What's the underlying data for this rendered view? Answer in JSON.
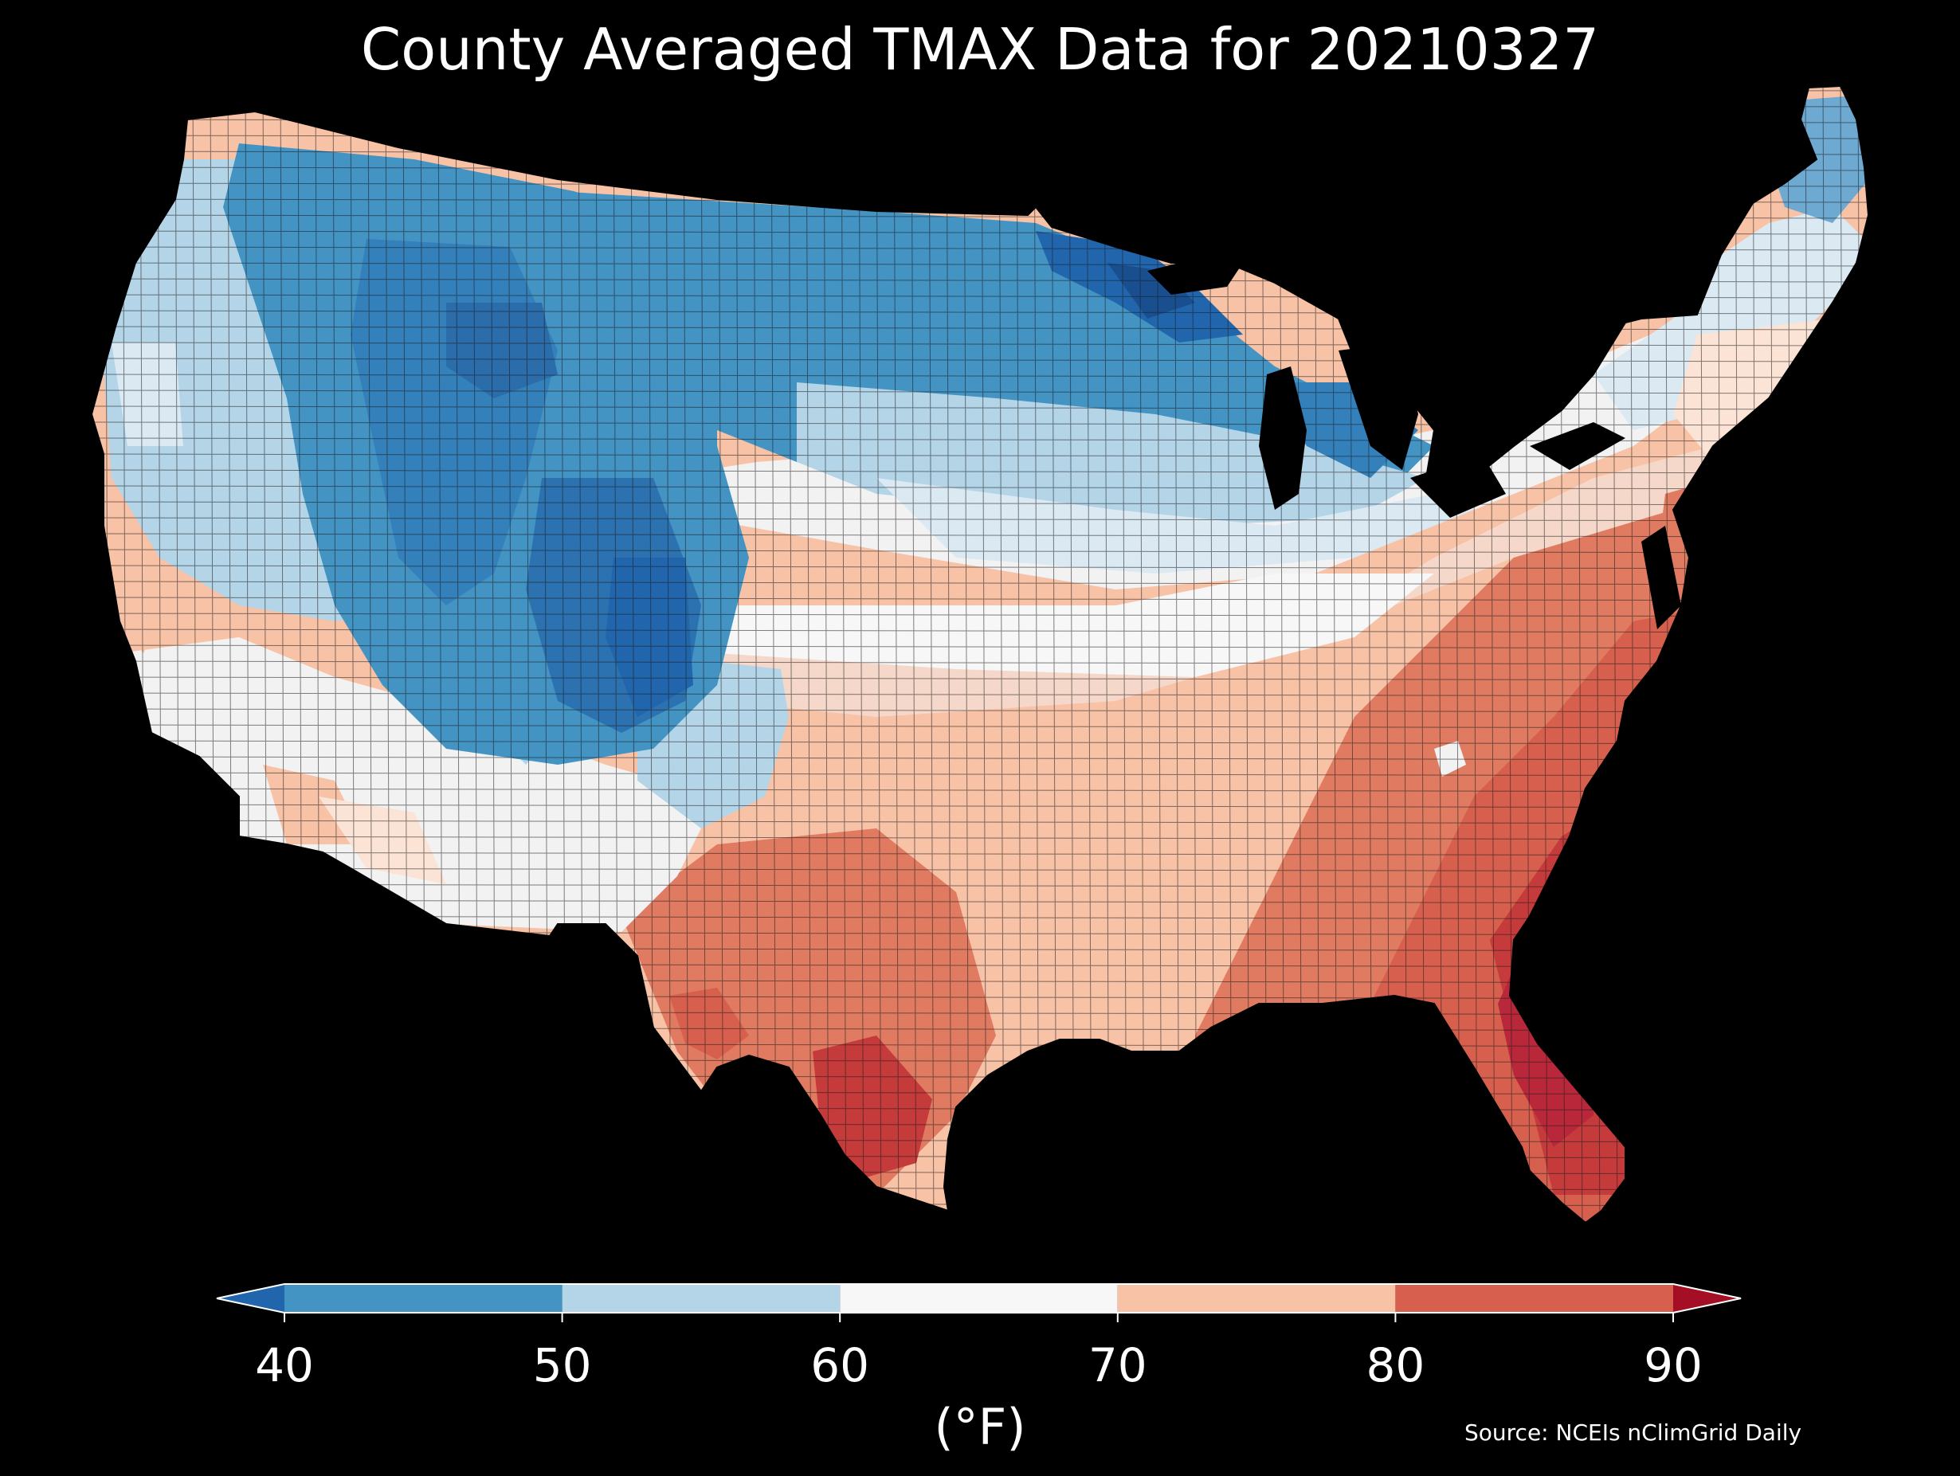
{
  "title": "County Averaged TMAX Data for 20210327",
  "colorbar": {
    "ticks": [
      "40",
      "50",
      "60",
      "70",
      "80",
      "90"
    ],
    "unit": "(°F)",
    "bins": [
      {
        "range": "<40",
        "color": "#2166ac"
      },
      {
        "range": "40-50",
        "color": "#4393c3"
      },
      {
        "range": "50-60",
        "color": "#b4d5e8"
      },
      {
        "range": "60-70",
        "color": "#f7f7f7"
      },
      {
        "range": "70-80",
        "color": "#f8c2a6"
      },
      {
        "range": "80-90",
        "color": "#d6604d"
      },
      {
        "range": ">90",
        "color": "#a50f25"
      }
    ]
  },
  "source": "Source: NCEIs nClimGrid Daily",
  "colors": {
    "background": "#000000",
    "water": "#000000",
    "county_lines": "#1a1a1a"
  },
  "regions": [
    {
      "name": "Pacific Northwest",
      "value_range": "50-60"
    },
    {
      "name": "Northern Rockies",
      "value_range": "<40-50"
    },
    {
      "name": "Upper Midwest",
      "value_range": "<40-50"
    },
    {
      "name": "Great Lakes",
      "value_range": "<40-50"
    },
    {
      "name": "Northeast",
      "value_range": "50-70"
    },
    {
      "name": "Southwest",
      "value_range": "60-70"
    },
    {
      "name": "Texas",
      "value_range": "70-90"
    },
    {
      "name": "Southeast",
      "value_range": "80-90"
    },
    {
      "name": "Florida",
      "value_range": "80->90"
    }
  ]
}
